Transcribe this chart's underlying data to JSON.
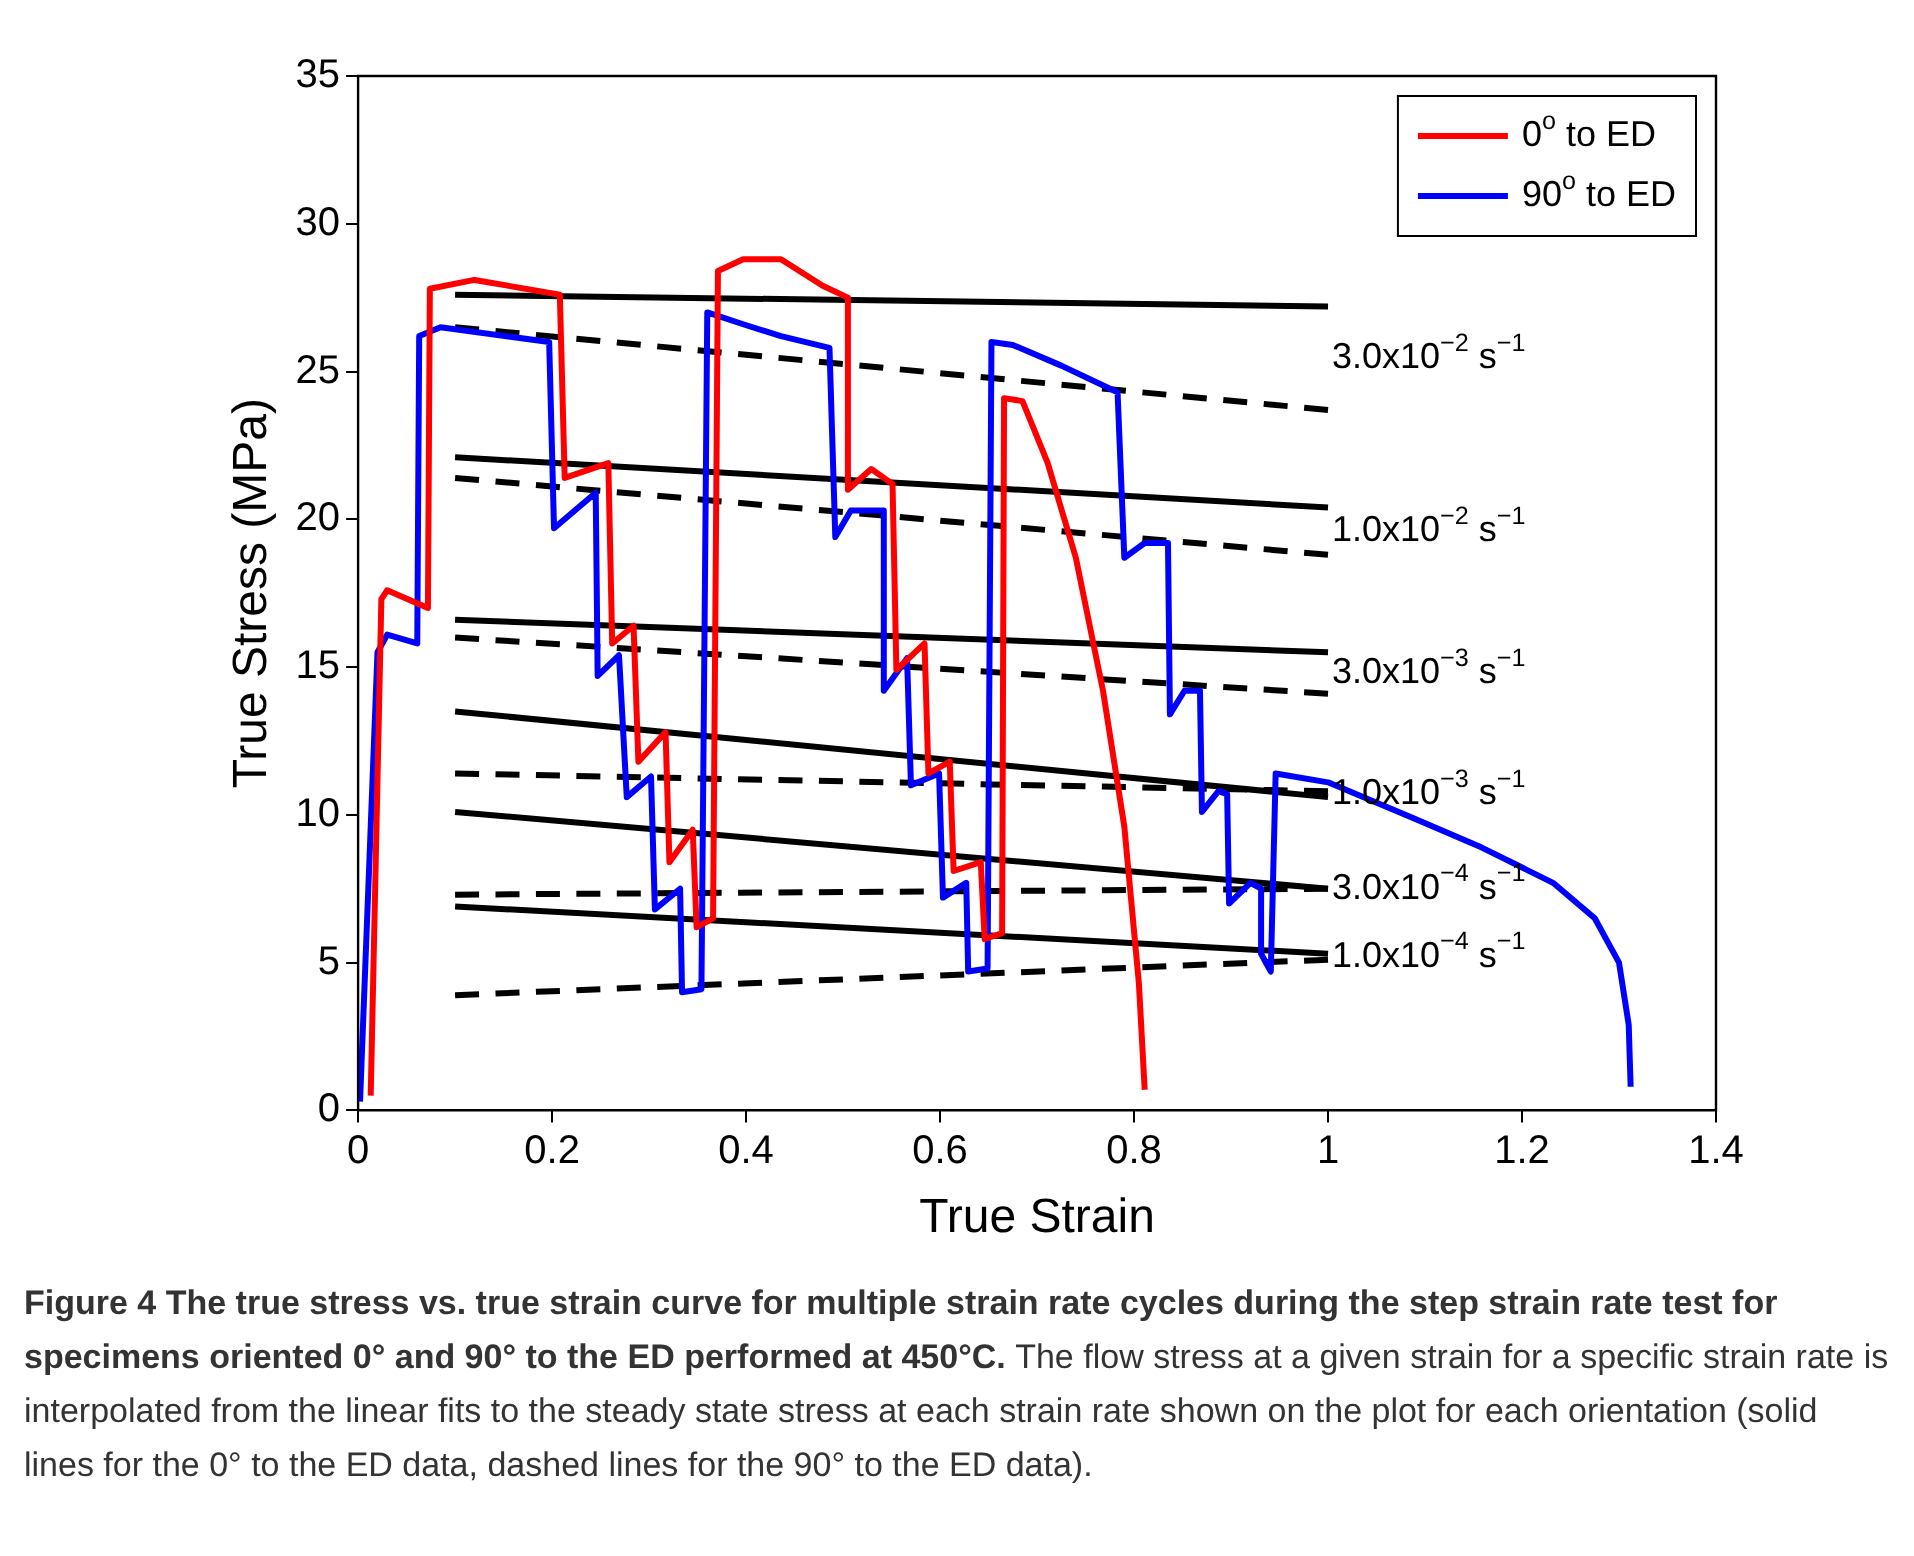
{
  "chart_data": {
    "type": "line",
    "xlabel": "True Strain",
    "ylabel": "True Stress (MPa)",
    "xlim": [
      0,
      1.4
    ],
    "xticks": [
      0,
      0.2,
      0.4,
      0.6,
      0.8,
      1,
      1.2,
      1.4
    ],
    "ylim": [
      0,
      35
    ],
    "yticks": [
      0,
      5,
      10,
      15,
      20,
      25,
      30,
      35
    ],
    "grid": false,
    "legend": "top right",
    "marker": "none",
    "series": [
      {
        "name": "0$^{o}$ to ED",
        "color": "#ff0000",
        "line_style": "solid",
        "x": [
          0.013,
          0.024,
          0.03,
          0.072,
          0.074,
          0.12,
          0.208,
          0.213,
          0.258,
          0.262,
          0.284,
          0.289,
          0.317,
          0.321,
          0.345,
          0.349,
          0.366,
          0.371,
          0.397,
          0.436,
          0.479,
          0.505,
          0.505,
          0.529,
          0.551,
          0.555,
          0.584,
          0.588,
          0.61,
          0.614,
          0.642,
          0.646,
          0.664,
          0.666,
          0.685,
          0.711,
          0.74,
          0.768,
          0.79,
          0.805,
          0.811
        ],
        "values": [
          0.5,
          17.3,
          17.6,
          17.0,
          27.8,
          28.1,
          27.6,
          21.4,
          21.9,
          15.8,
          16.4,
          11.8,
          12.8,
          8.4,
          9.5,
          6.2,
          6.5,
          28.4,
          28.8,
          28.8,
          27.9,
          27.5,
          21.0,
          21.7,
          21.2,
          14.9,
          15.8,
          11.4,
          11.8,
          8.1,
          8.4,
          5.8,
          6.0,
          24.1,
          24.0,
          21.9,
          18.7,
          14.2,
          9.6,
          4.3,
          0.7
        ]
      },
      {
        "name": "90$^{o}$ to ED",
        "color": "#0000ff",
        "line_style": "solid",
        "x": [
          0.002,
          0.02,
          0.03,
          0.061,
          0.063,
          0.085,
          0.197,
          0.202,
          0.245,
          0.247,
          0.269,
          0.277,
          0.302,
          0.306,
          0.332,
          0.334,
          0.354,
          0.36,
          0.397,
          0.436,
          0.486,
          0.492,
          0.508,
          0.542,
          0.542,
          0.566,
          0.57,
          0.599,
          0.603,
          0.627,
          0.629,
          0.649,
          0.653,
          0.675,
          0.725,
          0.783,
          0.79,
          0.811,
          0.835,
          0.837,
          0.852,
          0.868,
          0.87,
          0.887,
          0.896,
          0.898,
          0.92,
          0.931,
          0.931,
          0.941,
          0.946,
          1.0,
          1.087,
          1.158,
          1.232,
          1.275,
          1.3,
          1.31,
          1.312
        ],
        "values": [
          0.3,
          15.5,
          16.1,
          15.8,
          26.2,
          26.5,
          26.0,
          19.7,
          20.9,
          14.7,
          15.4,
          10.6,
          11.3,
          6.8,
          7.5,
          4.0,
          4.1,
          27.0,
          26.6,
          26.2,
          25.8,
          19.4,
          20.3,
          20.3,
          14.2,
          15.3,
          11.0,
          11.4,
          7.2,
          7.7,
          4.7,
          4.8,
          26.0,
          25.9,
          25.2,
          24.3,
          18.7,
          19.2,
          19.2,
          13.4,
          14.2,
          14.2,
          10.1,
          10.8,
          10.7,
          7.0,
          7.7,
          7.5,
          5.3,
          4.7,
          11.4,
          11.1,
          9.9,
          8.9,
          7.7,
          6.5,
          5.0,
          2.9,
          0.8
        ]
      },
      {
        "color": "#000000",
        "line_style": "solid",
        "x": [
          0.1,
          1.0
        ],
        "values": [
          27.6,
          27.2
        ]
      },
      {
        "color": "#000000",
        "line_style": "dashed",
        "x": [
          0.1,
          1.0
        ],
        "values": [
          26.5,
          23.7
        ]
      },
      {
        "color": "#000000",
        "line_style": "solid",
        "x": [
          0.1,
          1.0
        ],
        "values": [
          22.1,
          20.4
        ]
      },
      {
        "color": "#000000",
        "line_style": "dashed",
        "x": [
          0.1,
          1.0
        ],
        "values": [
          21.4,
          18.8
        ]
      },
      {
        "color": "#000000",
        "line_style": "solid",
        "x": [
          0.1,
          1.0
        ],
        "values": [
          16.6,
          15.5
        ]
      },
      {
        "color": "#000000",
        "line_style": "dashed",
        "x": [
          0.1,
          1.0
        ],
        "values": [
          16.0,
          14.1
        ]
      },
      {
        "color": "#000000",
        "line_style": "solid",
        "x": [
          0.1,
          1.0
        ],
        "values": [
          13.5,
          10.6
        ]
      },
      {
        "color": "#000000",
        "line_style": "dashed",
        "x": [
          0.1,
          1.0
        ],
        "values": [
          11.4,
          10.8
        ]
      },
      {
        "color": "#000000",
        "line_style": "solid",
        "x": [
          0.1,
          1.0
        ],
        "values": [
          10.1,
          7.5
        ]
      },
      {
        "color": "#000000",
        "line_style": "dashed",
        "x": [
          0.1,
          1.0
        ],
        "values": [
          7.3,
          7.5
        ]
      },
      {
        "color": "#000000",
        "line_style": "solid",
        "x": [
          0.1,
          1.0
        ],
        "values": [
          6.9,
          5.3
        ]
      },
      {
        "color": "#000000",
        "line_style": "dashed",
        "x": [
          0.1,
          1.0
        ],
        "values": [
          3.9,
          5.1
        ]
      }
    ],
    "annotations": [
      "3.0x10$^{−2}$ s$^{−1}$",
      "1.0x10$^{−2}$ s$^{−1}$",
      "3.0x10$^{−3}$ s$^{−1}$",
      "1.0x10$^{−3}$ s$^{−1}$",
      "3.0x10$^{−4}$ s$^{−1}$",
      "1.0x10$^{−4}$ s$^{−1}$",
      "Figure 4 The true stress vs. true strain curve for multiple strain rate cycles during the step strain rate test for specimens oriented 0° and 90° to the ED performed at 450°C.",
      "The flow stress at a given strain for a specific strain rate is interpolated from the linear fits to the steady state stress at each strain rate shown on the plot for each orientation (solid lines for the 0° to the ED data, dashed lines for the 90° to the ED data)."
    ]
  }
}
